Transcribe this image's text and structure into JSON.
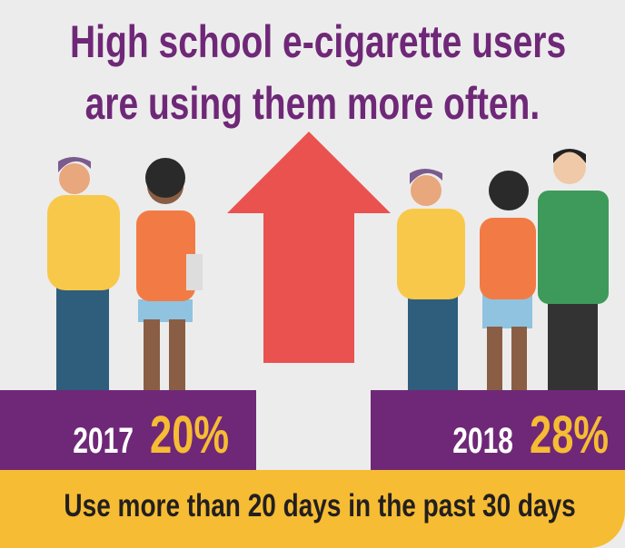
{
  "title": {
    "line1": "High school e-cigarette users",
    "line2": "are using them more often."
  },
  "stats": [
    {
      "year": "2017",
      "percent": "20%",
      "value": 20
    },
    {
      "year": "2018",
      "percent": "28%",
      "value": 28
    }
  ],
  "footer": "Use more than 20 days in the past 30 days",
  "colors": {
    "purple": "#6f2877",
    "yellow": "#f6bc33",
    "arrow": "#e9524f",
    "background": "#ececec"
  },
  "icons": [
    "up-arrow-icon",
    "students-illustration"
  ]
}
